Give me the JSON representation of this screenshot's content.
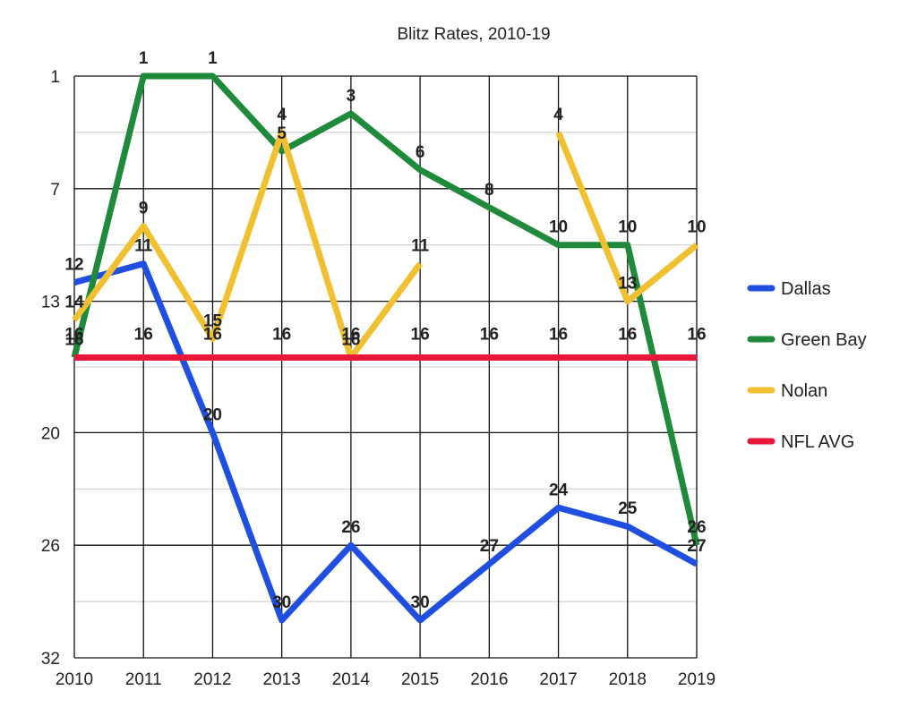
{
  "chart_data": {
    "type": "line",
    "title": "Blitz Rates, 2010-19",
    "xlabel": "",
    "ylabel": "",
    "y_inverted": true,
    "ylim": [
      1,
      32
    ],
    "yticks": [
      1,
      7,
      13,
      20,
      26,
      32
    ],
    "grid": true,
    "legend_position": "right",
    "x": [
      "2010",
      "2011",
      "2012",
      "2013",
      "2014",
      "2015",
      "2016",
      "2017",
      "2018",
      "2019"
    ],
    "series": [
      {
        "name": "Dallas",
        "color": "#1f4fe0",
        "values": [
          12,
          11,
          20,
          30,
          26,
          30,
          27,
          24,
          25,
          27
        ],
        "labels": [
          "12",
          "11",
          "20",
          "30",
          "26",
          "30",
          "27",
          "24",
          "25",
          "27"
        ]
      },
      {
        "name": "Green Bay",
        "color": "#1e8a3a",
        "values": [
          16,
          1,
          1,
          5,
          3,
          6,
          8,
          10,
          10,
          26
        ],
        "labels": [
          "16",
          "1",
          "1",
          "5",
          "3",
          "6",
          "8",
          "10",
          "10",
          "26"
        ]
      },
      {
        "name": "Nolan",
        "color": "#f0c030",
        "values": [
          14,
          9,
          15,
          4,
          16,
          11,
          null,
          4,
          13,
          10
        ],
        "labels": [
          "14",
          "9",
          "15",
          "4",
          "16",
          "11",
          null,
          "4",
          "13",
          "10"
        ]
      },
      {
        "name": "NFL AVG",
        "color": "#e8173a",
        "values": [
          16,
          16,
          16,
          16,
          16,
          16,
          16,
          16,
          16,
          16
        ],
        "labels": [
          "16",
          "16",
          "16",
          "16",
          "16",
          "16",
          "16",
          "16",
          "16",
          "16"
        ]
      }
    ]
  }
}
